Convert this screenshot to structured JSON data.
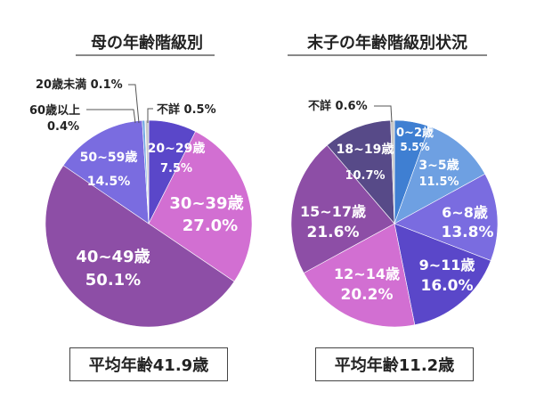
{
  "chart_data": [
    {
      "type": "pie",
      "title": "母の年齢階級別",
      "start": "top-clockwise",
      "slices": [
        {
          "label": "20~29歳",
          "value": 7.5,
          "text": "7.5%",
          "color": "#5a47c9"
        },
        {
          "label": "30~39歳",
          "value": 27.0,
          "text": "27.0%",
          "color": "#d26fd2"
        },
        {
          "label": "40~49歳",
          "value": 50.1,
          "text": "50.1%",
          "color": "#8d4ea6"
        },
        {
          "label": "50~59歳",
          "value": 14.5,
          "text": "14.5%",
          "color": "#7a6ce0"
        },
        {
          "label": "60歳以上",
          "value": 0.4,
          "text": "0.4%",
          "color": "#6ea6e2"
        },
        {
          "label": "20歳未満",
          "value": 0.1,
          "text": "0.1%",
          "color": "#3b7bd0"
        },
        {
          "label": "不詳",
          "value": 0.5,
          "text": "0.5%",
          "color": "#c8c8c8"
        }
      ],
      "average": "平均年齢41.9歳"
    },
    {
      "type": "pie",
      "title": "末子の年齢階級別状況",
      "start": "top-clockwise",
      "slices": [
        {
          "label": "0~2歳",
          "value": 5.5,
          "text": "5.5%",
          "color": "#3f7fd2"
        },
        {
          "label": "3~5歳",
          "value": 11.5,
          "text": "11.5%",
          "color": "#6ea0e2"
        },
        {
          "label": "6~8歳",
          "value": 13.8,
          "text": "13.8%",
          "color": "#7a6ce0"
        },
        {
          "label": "9~11歳",
          "value": 16.0,
          "text": "16.0%",
          "color": "#5a47c9"
        },
        {
          "label": "12~14歳",
          "value": 20.2,
          "text": "20.2%",
          "color": "#d26fd2"
        },
        {
          "label": "15~17歳",
          "value": 21.6,
          "text": "21.6%",
          "color": "#8d4ea6"
        },
        {
          "label": "18~19歳",
          "value": 10.7,
          "text": "10.7%",
          "color": "#574a88"
        },
        {
          "label": "不詳",
          "value": 0.6,
          "text": "0.6%",
          "color": "#c8c8c8"
        }
      ],
      "average": "平均年齢11.2歳"
    }
  ]
}
